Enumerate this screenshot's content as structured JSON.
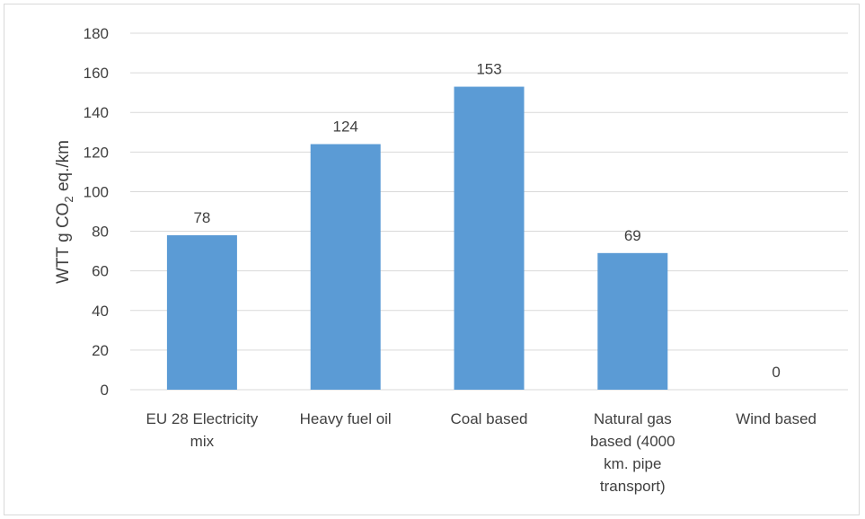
{
  "chart_data": {
    "type": "bar",
    "categories": [
      [
        "EU 28 Electricity",
        "mix"
      ],
      [
        "Heavy fuel oil"
      ],
      [
        "Coal based"
      ],
      [
        "Natural gas",
        "based (4000",
        "km. pipe",
        "transport)"
      ],
      [
        "Wind based"
      ]
    ],
    "values": [
      78,
      124,
      153,
      69,
      0
    ],
    "data_labels": [
      "78",
      "124",
      "153",
      "69",
      "0"
    ],
    "ylabel": {
      "main": "WTT g CO",
      "subscript": "2",
      "suffix": " eq./km"
    },
    "ylim": [
      0,
      180
    ],
    "yticks": [
      0,
      20,
      40,
      60,
      80,
      100,
      120,
      140,
      160,
      180
    ],
    "grid": true,
    "bar_color": "#5b9bd5",
    "grid_color": "#d9d9d9",
    "text_color": "#404040"
  }
}
